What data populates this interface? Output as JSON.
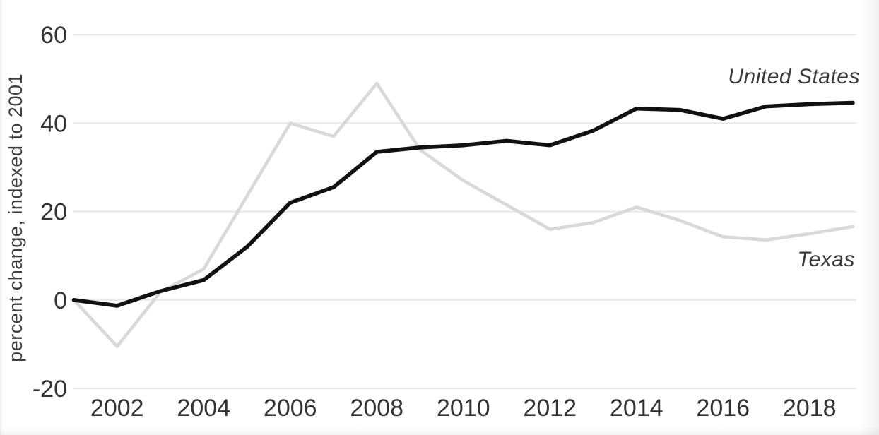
{
  "chart_data": {
    "type": "line",
    "title": "",
    "xlabel": "",
    "ylabel": "percent change, indexed to 2001",
    "x": [
      2001,
      2002,
      2003,
      2004,
      2005,
      2006,
      2007,
      2008,
      2009,
      2010,
      2011,
      2012,
      2013,
      2014,
      2015,
      2016,
      2017,
      2018,
      2019
    ],
    "series": [
      {
        "name": "United States",
        "color": "#111111",
        "values": [
          0,
          -1.3,
          2,
          4.5,
          12,
          22,
          25.5,
          33.5,
          34.5,
          35,
          36,
          35,
          38.3,
          43.3,
          43,
          41,
          43.8,
          44.3,
          44.6
        ]
      },
      {
        "name": "Texas",
        "color": "#d9d9d9",
        "values": [
          0,
          -10.5,
          1.8,
          7,
          23.5,
          40,
          37,
          49,
          34,
          27,
          21.5,
          16,
          17.5,
          21,
          18,
          14.3,
          13.6,
          15,
          16.6
        ]
      }
    ],
    "ylim": [
      -20,
      60
    ],
    "yticks": [
      60,
      40,
      20,
      0,
      -20
    ],
    "xticks": [
      2002,
      2004,
      2006,
      2008,
      2010,
      2012,
      2014,
      2016,
      2018
    ],
    "grid": "horizontal",
    "legend_position": "inline-right-of-lines",
    "colors": {
      "background": "#ffffff",
      "gridline": "#e9e9e9",
      "tick_text": "#333333",
      "axis_label_text": "#3f3f3f"
    }
  }
}
